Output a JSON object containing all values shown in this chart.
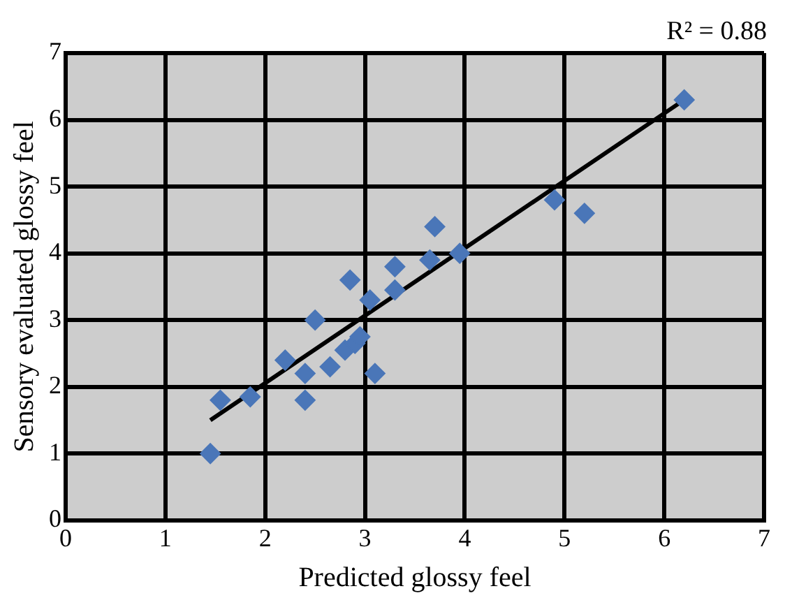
{
  "chart_data": {
    "type": "scatter",
    "xlabel": "Predicted glossy feel",
    "ylabel": "Sensory evaluated glossy feel",
    "annotations": [
      "R² = 0.88"
    ],
    "xlim": [
      0,
      7
    ],
    "ylim": [
      0,
      7
    ],
    "xticks": [
      0,
      1,
      2,
      3,
      4,
      5,
      6,
      7
    ],
    "yticks": [
      0,
      1,
      2,
      3,
      4,
      5,
      6,
      7
    ],
    "grid": true,
    "legend": false,
    "marker": "diamond",
    "series": [
      {
        "color": "#4a76b8",
        "x": [
          1.45,
          1.55,
          1.85,
          2.2,
          2.4,
          2.4,
          2.5,
          2.65,
          2.8,
          2.85,
          2.9,
          2.95,
          3.05,
          3.1,
          3.3,
          3.3,
          3.65,
          3.7,
          3.95,
          4.9,
          5.2,
          6.2
        ],
        "values": [
          1.0,
          1.8,
          1.85,
          2.4,
          2.2,
          1.8,
          3.0,
          2.3,
          2.55,
          3.6,
          2.65,
          2.75,
          3.3,
          2.2,
          3.8,
          3.45,
          3.9,
          4.4,
          4.0,
          4.8,
          4.6,
          6.3
        ]
      },
      {
        "type": "line",
        "color": "#000000",
        "marker": "none",
        "x": [
          1.45,
          6.2
        ],
        "values": [
          1.5,
          6.3
        ]
      }
    ]
  }
}
